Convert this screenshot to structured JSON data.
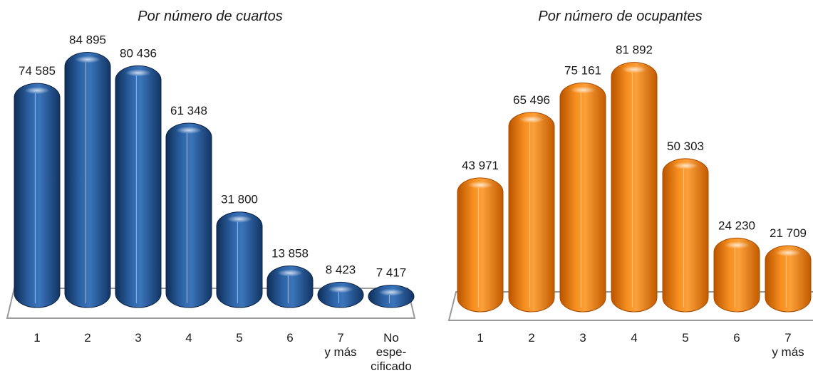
{
  "colors": {
    "blue": "#1f4f8c",
    "orange": "#f07a0c",
    "floor": "#9a9a9a"
  },
  "chart_data": [
    {
      "type": "bar",
      "title": "Por número de cuartos",
      "categories": [
        "1",
        "2",
        "3",
        "4",
        "5",
        "6",
        "7\ny más",
        "No\nespe-\ncificado"
      ],
      "values": [
        74585,
        84895,
        80436,
        61348,
        31800,
        13858,
        8423,
        7417
      ],
      "labels": [
        "74 585",
        "84 895",
        "80 436",
        "61 348",
        "31 800",
        "13 858",
        "8 423",
        "7 417"
      ],
      "ylim": [
        0,
        90000
      ],
      "grid": false,
      "legend": "none"
    },
    {
      "type": "bar",
      "title": "Por número de ocupantes",
      "categories": [
        "1",
        "2",
        "3",
        "4",
        "5",
        "6",
        "7\ny más"
      ],
      "values": [
        43971,
        65496,
        75161,
        81892,
        50303,
        24230,
        21709
      ],
      "labels": [
        "43 971",
        "65 496",
        "75 161",
        "81 892",
        "50 303",
        "24 230",
        "21 709"
      ],
      "ylim": [
        0,
        90000
      ],
      "grid": false,
      "legend": "none"
    }
  ]
}
